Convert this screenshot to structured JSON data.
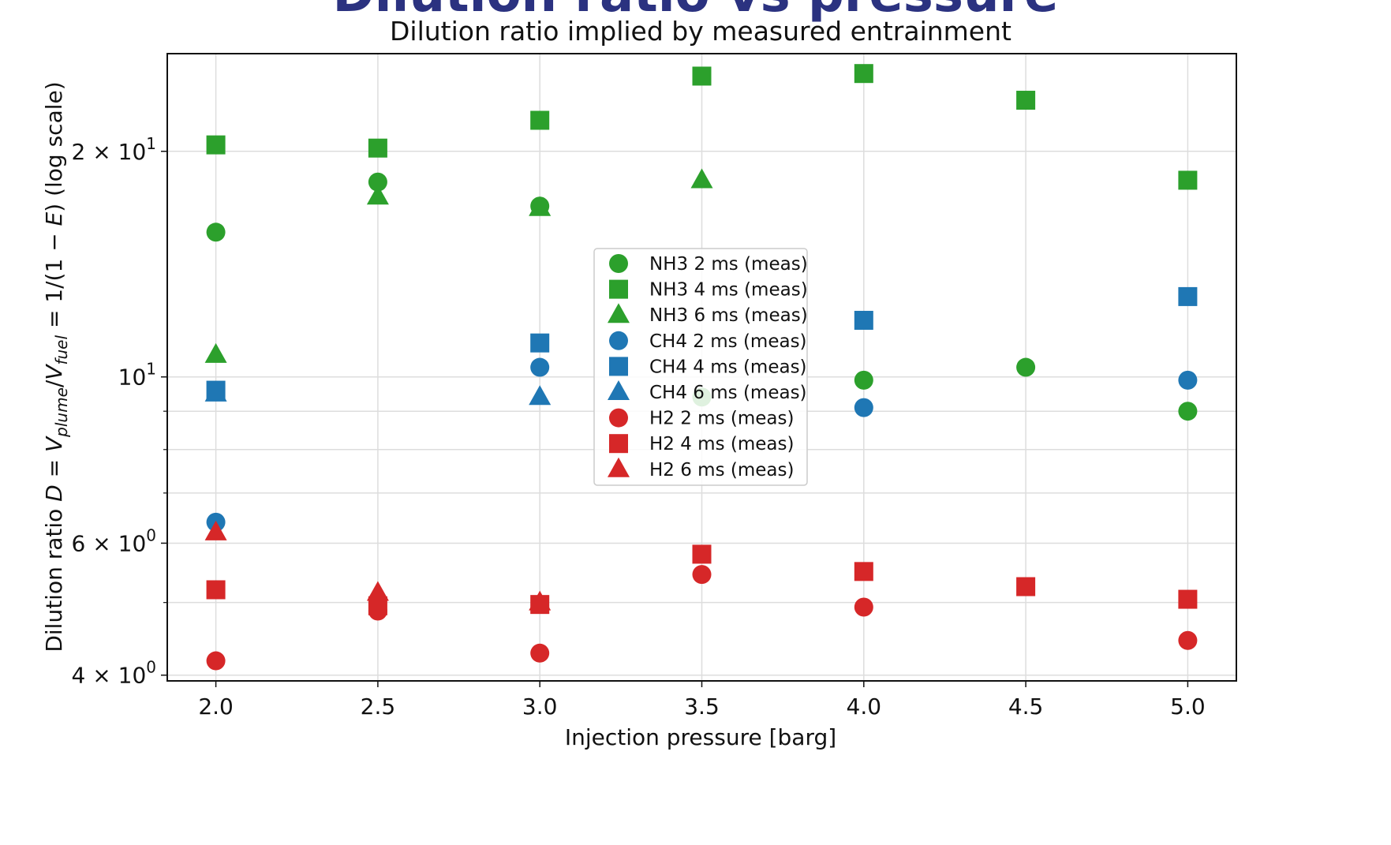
{
  "banner_title": "Dilution ratio vs pressure",
  "chart_data": {
    "type": "scatter",
    "title": "Dilution ratio implied by measured entrainment",
    "xlabel": "Injection pressure [barg]",
    "ylabel": {
      "prefix": "Dilution ratio  ",
      "var": "D",
      "eq1": " = ",
      "v": "V",
      "sub_plume": "plume",
      "slash": "/",
      "sub_fuel": "fuel",
      "eq2": " = 1/(1 − ",
      "e": "E",
      "suffix": ")  (log scale)"
    },
    "x_ticks": [
      "2.0",
      "2.5",
      "3.0",
      "3.5",
      "4.0",
      "4.5",
      "5.0"
    ],
    "y_ticks": [
      {
        "value": 4,
        "mant": "4 × 10",
        "exp": "0"
      },
      {
        "value": 6,
        "mant": "6 × 10",
        "exp": "0"
      },
      {
        "value": 10,
        "mant": "10",
        "exp": "1"
      },
      {
        "value": 20,
        "mant": "2 × 10",
        "exp": "1"
      }
    ],
    "xlim": [
      1.85,
      5.15
    ],
    "ylim": [
      3.93,
      27.0
    ],
    "y_scale": "log",
    "grid": true,
    "legend_position": "center",
    "colors": {
      "NH3": "#2ca02c",
      "CH4": "#1f77b4",
      "H2": "#d62728"
    },
    "series": [
      {
        "name": "NH3 2 ms (meas)",
        "gas": "NH3",
        "marker": "circle",
        "x": [
          2.0,
          2.5,
          3.0,
          3.5,
          4.0,
          4.5,
          5.0
        ],
        "y": [
          15.6,
          18.2,
          16.9,
          9.4,
          9.9,
          10.3,
          9.0
        ]
      },
      {
        "name": "NH3 4 ms (meas)",
        "gas": "NH3",
        "marker": "square",
        "x": [
          2.0,
          2.5,
          3.0,
          3.5,
          4.0,
          4.5,
          5.0
        ],
        "y": [
          20.4,
          20.2,
          22.0,
          25.2,
          25.4,
          23.4,
          18.3
        ]
      },
      {
        "name": "NH3 6 ms (meas)",
        "gas": "NH3",
        "marker": "triangle",
        "x": [
          2.0,
          2.5,
          3.0,
          3.5
        ],
        "y": [
          10.7,
          17.4,
          16.8,
          18.3
        ]
      },
      {
        "name": "CH4 2 ms (meas)",
        "gas": "CH4",
        "marker": "circle",
        "x": [
          2.0,
          3.0,
          4.0,
          5.0
        ],
        "y": [
          6.4,
          10.3,
          9.1,
          9.9
        ]
      },
      {
        "name": "CH4 4 ms (meas)",
        "gas": "CH4",
        "marker": "square",
        "x": [
          2.0,
          3.0,
          4.0,
          5.0
        ],
        "y": [
          9.6,
          11.1,
          11.9,
          12.8
        ]
      },
      {
        "name": "CH4 6 ms (meas)",
        "gas": "CH4",
        "marker": "triangle",
        "x": [
          2.0,
          3.0
        ],
        "y": [
          9.5,
          9.4
        ]
      },
      {
        "name": "H2 2 ms (meas)",
        "gas": "H2",
        "marker": "circle",
        "x": [
          2.0,
          2.5,
          3.0,
          3.5,
          4.0,
          5.0
        ],
        "y": [
          4.18,
          4.87,
          4.28,
          5.45,
          4.93,
          4.45
        ]
      },
      {
        "name": "H2 4 ms (meas)",
        "gas": "H2",
        "marker": "square",
        "x": [
          2.0,
          2.5,
          3.0,
          3.5,
          4.0,
          4.5,
          5.0
        ],
        "y": [
          5.2,
          4.95,
          4.97,
          5.8,
          5.5,
          5.25,
          5.05
        ]
      },
      {
        "name": "H2 6 ms (meas)",
        "gas": "H2",
        "marker": "triangle",
        "x": [
          2.0,
          2.5,
          3.0
        ],
        "y": [
          6.2,
          5.15,
          5.0
        ]
      }
    ]
  }
}
